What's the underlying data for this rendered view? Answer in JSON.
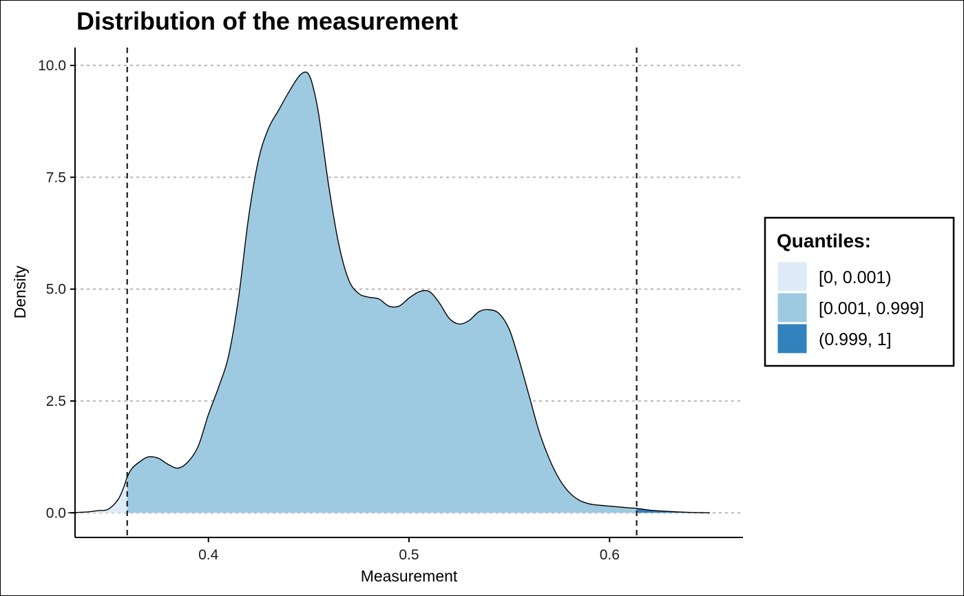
{
  "chart_data": {
    "type": "area",
    "title": "Distribution of the measurement",
    "xlabel": "Measurement",
    "ylabel": "Density",
    "xlim": [
      0.3335,
      0.6665
    ],
    "ylim": [
      -0.55,
      10.4
    ],
    "x_ticks": [
      0.4,
      0.5,
      0.6
    ],
    "x_tick_labels": [
      "0.4",
      "0.5",
      "0.6"
    ],
    "y_ticks": [
      0.0,
      2.5,
      5.0,
      7.5,
      10.0
    ],
    "y_tick_labels": [
      "0.0",
      "2.5",
      "5.0",
      "7.5",
      "10.0"
    ],
    "grid": "horizontal dotted",
    "legend_position": "right",
    "legend": {
      "title": "Quantiles:",
      "entries": [
        {
          "label": "[0, 0.001)",
          "color": "#deebf7"
        },
        {
          "label": "[0.001, 0.999]",
          "color": "#9ecae1"
        },
        {
          "label": "(0.999, 1]",
          "color": "#3182bd"
        }
      ]
    },
    "quantile_lines": [
      0.3595,
      0.6135
    ],
    "density": {
      "x": [
        0.35,
        0.355,
        0.358,
        0.3595,
        0.362,
        0.366,
        0.37,
        0.375,
        0.38,
        0.385,
        0.39,
        0.395,
        0.4,
        0.405,
        0.41,
        0.415,
        0.42,
        0.425,
        0.43,
        0.435,
        0.44,
        0.445,
        0.448,
        0.45,
        0.452,
        0.455,
        0.46,
        0.465,
        0.47,
        0.475,
        0.48,
        0.485,
        0.49,
        0.495,
        0.5,
        0.505,
        0.51,
        0.515,
        0.52,
        0.525,
        0.53,
        0.535,
        0.54,
        0.545,
        0.55,
        0.555,
        0.56,
        0.565,
        0.57,
        0.575,
        0.58,
        0.585,
        0.59,
        0.595,
        0.6,
        0.605,
        0.61,
        0.6135,
        0.62,
        0.63,
        0.64,
        0.65
      ],
      "y": [
        0.08,
        0.3,
        0.6,
        0.8,
        1.0,
        1.15,
        1.25,
        1.22,
        1.08,
        1.0,
        1.15,
        1.5,
        2.2,
        2.8,
        3.5,
        4.8,
        6.6,
        7.9,
        8.6,
        9.0,
        9.4,
        9.75,
        9.85,
        9.8,
        9.55,
        8.9,
        7.3,
        6.0,
        5.2,
        4.9,
        4.82,
        4.78,
        4.62,
        4.62,
        4.8,
        4.94,
        4.95,
        4.7,
        4.35,
        4.22,
        4.3,
        4.5,
        4.54,
        4.45,
        4.1,
        3.4,
        2.6,
        1.8,
        1.2,
        0.75,
        0.45,
        0.28,
        0.2,
        0.17,
        0.15,
        0.13,
        0.11,
        0.1,
        0.06,
        0.03,
        0.01,
        0.0
      ],
      "tail_left": {
        "x": [
          0.33,
          0.335,
          0.34,
          0.345,
          0.35
        ],
        "y": [
          0.0,
          0.01,
          0.02,
          0.05,
          0.08
        ]
      }
    }
  }
}
